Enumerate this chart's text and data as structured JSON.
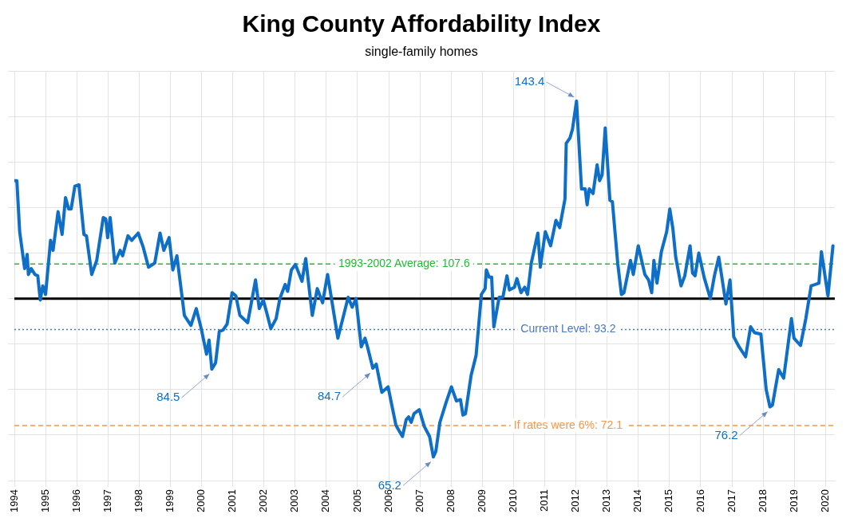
{
  "chart_data": {
    "type": "line",
    "title": "King County Affordability Index",
    "subtitle": "single-family homes",
    "xlim": [
      1994,
      2020.3
    ],
    "xticks": [
      1994,
      1995,
      1996,
      1997,
      1998,
      1999,
      2000,
      2001,
      2002,
      2003,
      2004,
      2005,
      2006,
      2007,
      2008,
      2009,
      2010,
      2011,
      2012,
      2013,
      2014,
      2015,
      2016,
      2017,
      2018,
      2019,
      2020
    ],
    "ylim": [
      60,
      150
    ],
    "yticks": [
      {
        "value": 60,
        "label": null
      },
      {
        "value": 70,
        "label": null
      },
      {
        "value": 80,
        "label": null
      },
      {
        "value": 90,
        "label": null
      },
      {
        "value": 100,
        "label": null
      },
      {
        "value": 110,
        "label": null
      },
      {
        "value": 120,
        "label": null
      },
      {
        "value": 130,
        "label": null
      },
      {
        "value": 140,
        "label": null
      },
      {
        "value": 150,
        "label": null
      }
    ],
    "tick_labels": "x",
    "grid": true,
    "legend": false,
    "marker": "none",
    "line_style": "solid",
    "series": [
      {
        "color": "#0f6fc6",
        "x": [
          1994.0,
          1994.08,
          1994.17,
          1994.33,
          1994.41,
          1994.45,
          1994.54,
          1994.66,
          1994.75,
          1994.83,
          1994.91,
          1995.0,
          1995.16,
          1995.24,
          1995.4,
          1995.53,
          1995.64,
          1995.74,
          1995.82,
          1995.94,
          1996.07,
          1996.23,
          1996.31,
          1996.48,
          1996.64,
          1996.85,
          1996.93,
          1996.99,
          1997.07,
          1997.22,
          1997.39,
          1997.47,
          1997.64,
          1997.76,
          1997.97,
          1998.13,
          1998.3,
          1998.5,
          1998.67,
          1998.79,
          1998.96,
          1999.08,
          1999.21,
          1999.45,
          1999.66,
          1999.83,
          1999.99,
          2000.16,
          2000.24,
          2000.33,
          2000.45,
          2000.57,
          2000.69,
          2000.82,
          2000.98,
          2001.1,
          2001.23,
          2001.48,
          2001.73,
          2001.85,
          2001.98,
          2002.1,
          2002.22,
          2002.39,
          2002.51,
          2002.68,
          2002.76,
          2002.88,
          2003.01,
          2003.22,
          2003.34,
          2003.55,
          2003.71,
          2003.88,
          2004.04,
          2004.37,
          2004.7,
          2004.83,
          2004.95,
          2005.12,
          2005.24,
          2005.32,
          2005.49,
          2005.6,
          2005.78,
          2005.98,
          2006.23,
          2006.44,
          2006.56,
          2006.64,
          2006.72,
          2006.81,
          2006.98,
          2007.14,
          2007.31,
          2007.43,
          2007.51,
          2007.64,
          2007.84,
          2008.01,
          2008.17,
          2008.3,
          2008.38,
          2008.46,
          2008.64,
          2008.8,
          2008.97,
          2009.09,
          2009.13,
          2009.22,
          2009.3,
          2009.37,
          2009.54,
          2009.66,
          2009.79,
          2009.87,
          2010.03,
          2010.11,
          2010.24,
          2010.36,
          2010.45,
          2010.57,
          2010.78,
          2010.86,
          2011.02,
          2011.19,
          2011.36,
          2011.48,
          2011.65,
          2011.69,
          2011.81,
          2011.89,
          2012.02,
          2012.18,
          2012.3,
          2012.36,
          2012.43,
          2012.55,
          2012.68,
          2012.76,
          2012.84,
          2012.94,
          2013.09,
          2013.17,
          2013.34,
          2013.46,
          2013.54,
          2013.75,
          2013.84,
          2014.0,
          2014.21,
          2014.33,
          2014.43,
          2014.5,
          2014.6,
          2014.74,
          2014.91,
          2015.01,
          2015.11,
          2015.2,
          2015.37,
          2015.49,
          2015.66,
          2015.74,
          2015.82,
          2015.94,
          2016.11,
          2016.31,
          2016.44,
          2016.58,
          2016.81,
          2016.94,
          2017.06,
          2017.23,
          2017.44,
          2017.6,
          2017.73,
          2017.93,
          2018.1,
          2018.22,
          2018.3,
          2018.5,
          2018.66,
          2018.91,
          2018.99,
          2019.2,
          2019.37,
          2019.54,
          2019.79,
          2019.87,
          2020.08,
          2020.24
        ],
        "values": [
          125.9,
          125.9,
          114.7,
          106.6,
          109.7,
          105.3,
          106.6,
          105.3,
          105.0,
          99.7,
          102.8,
          100.9,
          112.8,
          110.6,
          119.1,
          114.1,
          122.2,
          119.7,
          119.7,
          124.7,
          125.0,
          114.1,
          113.8,
          105.3,
          108.4,
          117.8,
          117.5,
          113.4,
          117.8,
          107.8,
          110.6,
          109.4,
          113.8,
          112.8,
          114.4,
          111.3,
          106.9,
          107.8,
          114.4,
          110.6,
          113.4,
          106.3,
          109.4,
          96.3,
          94.1,
          97.8,
          93.4,
          87.8,
          90.9,
          84.5,
          85.9,
          92.8,
          93.1,
          94.4,
          101.3,
          100.6,
          96.3,
          94.7,
          104.1,
          97.8,
          99.7,
          96.6,
          93.4,
          95.6,
          100.0,
          103.1,
          101.6,
          106.3,
          107.5,
          103.8,
          108.8,
          96.3,
          102.2,
          99.1,
          105.3,
          91.3,
          100.3,
          98.1,
          100.0,
          89.4,
          91.3,
          89.4,
          84.7,
          85.6,
          79.4,
          80.6,
          72.2,
          69.7,
          73.4,
          74.0,
          72.8,
          74.7,
          75.6,
          71.9,
          69.7,
          65.2,
          66.4,
          72.8,
          77.2,
          80.6,
          77.5,
          77.8,
          74.4,
          74.7,
          83.1,
          87.5,
          100.9,
          102.2,
          106.3,
          104.7,
          104.7,
          93.8,
          100.3,
          100.3,
          105.0,
          101.9,
          102.5,
          104.4,
          101.3,
          102.5,
          100.9,
          107.8,
          114.4,
          106.9,
          114.7,
          111.6,
          117.2,
          115.6,
          121.9,
          134.1,
          135.3,
          137.2,
          143.4,
          124.1,
          124.1,
          120.6,
          124.1,
          123.1,
          129.4,
          125.9,
          127.2,
          137.5,
          121.6,
          121.3,
          107.8,
          100.9,
          101.3,
          108.4,
          105.3,
          111.6,
          105.3,
          104.1,
          101.3,
          108.4,
          103.4,
          110.3,
          114.7,
          119.7,
          115.3,
          109.1,
          102.8,
          105.0,
          111.6,
          105.6,
          105.0,
          110.0,
          104.7,
          100.0,
          105.0,
          109.1,
          98.8,
          104.1,
          91.6,
          89.4,
          87.2,
          93.8,
          92.5,
          92.2,
          80.0,
          76.2,
          76.6,
          84.4,
          82.5,
          95.6,
          91.3,
          89.7,
          95.6,
          102.8,
          103.4,
          110.3,
          100.6,
          111.6
        ]
      }
    ],
    "ref_lines": [
      {
        "axis": "y",
        "value": 100,
        "color": "#000000",
        "line_style": "solid"
      },
      {
        "axis": "y",
        "value": 107.6,
        "label": "1993-2002 Average: 107.6",
        "color": "#22bb33",
        "line_style": "dashed"
      },
      {
        "axis": "y",
        "value": 93.2,
        "label": "Current Level: 93.2",
        "color": "#4a78c0",
        "line_style": "dotted"
      },
      {
        "axis": "y",
        "value": 72.1,
        "label": "If rates were 6%: 72.1",
        "color": "#f79646",
        "line_style": "dashed"
      }
    ],
    "annotations": [
      {
        "text": "143.4",
        "x": 2012.02,
        "y": 143.4
      },
      {
        "text": "84.5",
        "x": 2000.33,
        "y": 84.5
      },
      {
        "text": "84.7",
        "x": 2005.49,
        "y": 84.7
      },
      {
        "text": "65.2",
        "x": 2007.43,
        "y": 65.2
      },
      {
        "text": "76.2",
        "x": 2018.22,
        "y": 76.2
      }
    ]
  }
}
